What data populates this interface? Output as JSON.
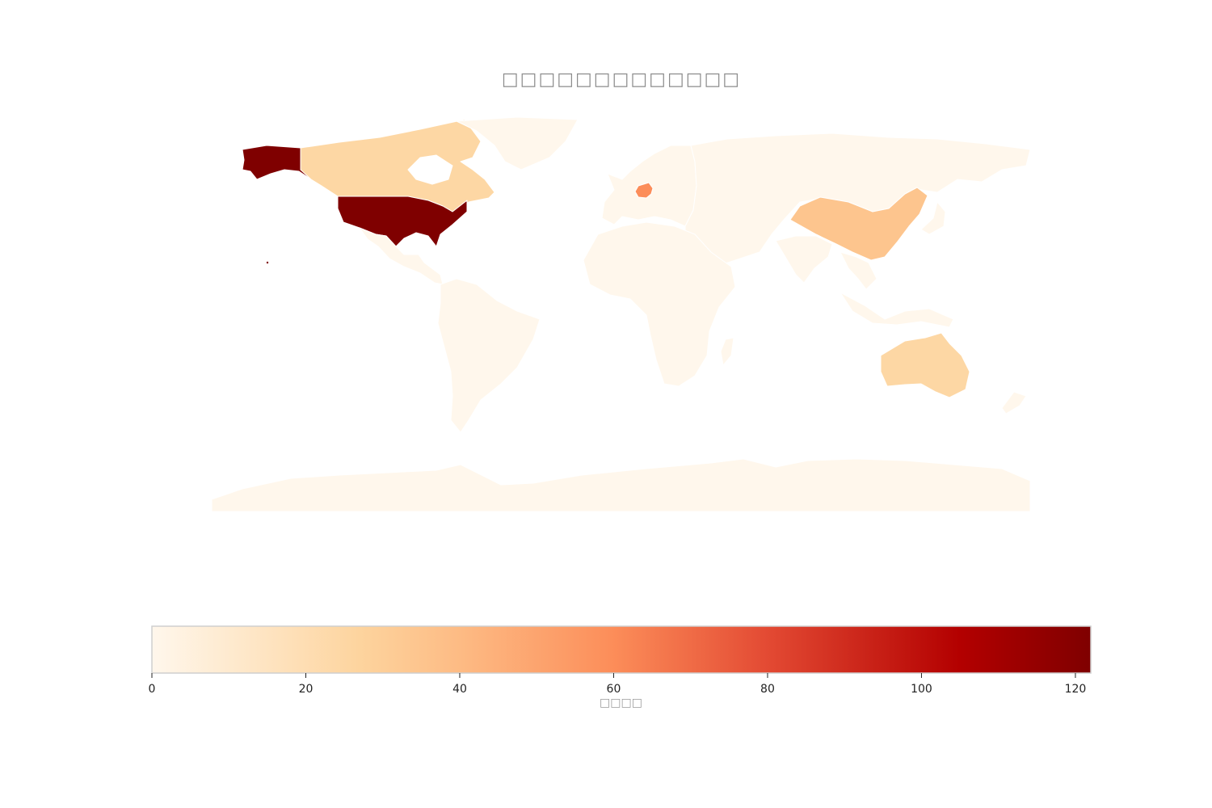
{
  "title": "□□□□□□□□□□□□□",
  "colorbar": {
    "label": "□□□□",
    "range": [
      0,
      122
    ],
    "ticks": [
      0,
      20,
      40,
      60,
      80,
      100,
      120
    ],
    "colormap": "OrRd",
    "stops": [
      {
        "v": 0,
        "c": "#fff7ec"
      },
      {
        "v": 27,
        "c": "#fdd49e"
      },
      {
        "v": 40,
        "c": "#fdbb84"
      },
      {
        "v": 60,
        "c": "#fc8d59"
      },
      {
        "v": 80,
        "c": "#e34a33"
      },
      {
        "v": 105,
        "c": "#b30000"
      },
      {
        "v": 122,
        "c": "#7f0000"
      }
    ]
  },
  "chart_data": {
    "type": "choropleth",
    "projection": "plate-carree",
    "grid": false,
    "legend": "colorbar-bottom",
    "regions": [
      {
        "id": "usa",
        "value": 122
      },
      {
        "id": "germany",
        "value": 60
      },
      {
        "id": "china",
        "value": 35
      },
      {
        "id": "canada",
        "value": 25
      },
      {
        "id": "australia",
        "value": 25
      },
      {
        "id": "greenland",
        "value": 0
      },
      {
        "id": "mexico",
        "value": 0
      },
      {
        "id": "south-america",
        "value": 0
      },
      {
        "id": "europe",
        "value": 0
      },
      {
        "id": "russia-asia",
        "value": 0
      },
      {
        "id": "africa",
        "value": 0
      },
      {
        "id": "india",
        "value": 0
      },
      {
        "id": "madagascar",
        "value": 0
      },
      {
        "id": "japan",
        "value": 0
      },
      {
        "id": "se-asia",
        "value": 0
      },
      {
        "id": "new-zealand",
        "value": 0
      },
      {
        "id": "antarctica",
        "value": 0
      }
    ]
  }
}
